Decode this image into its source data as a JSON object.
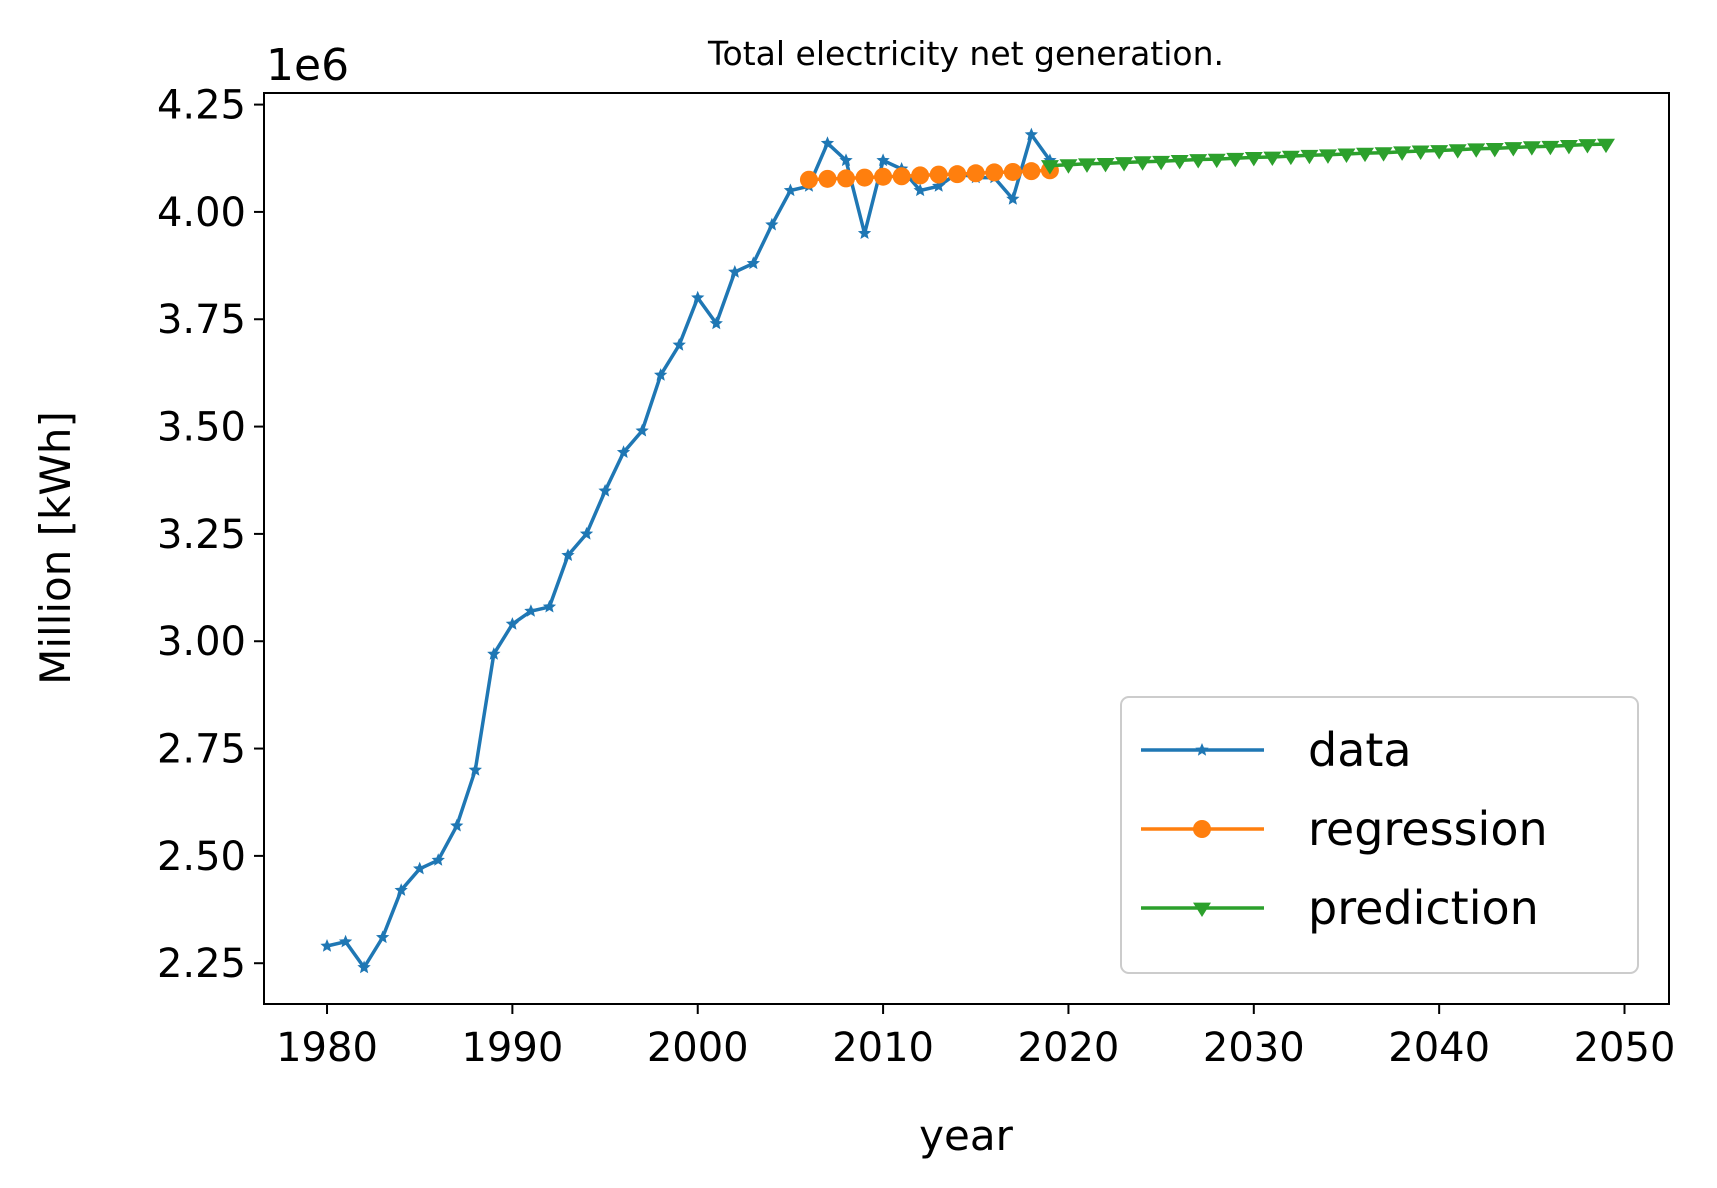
{
  "chart_data": {
    "type": "line",
    "title": "Total electricity net generation.",
    "xlabel": "year",
    "ylabel": "Million [kWh]",
    "y_offset_text": "1e6",
    "xlim": [
      1976.6,
      2052.4
    ],
    "ylim": [
      2.155,
      4.277
    ],
    "x_ticks": [
      1980,
      1990,
      2000,
      2010,
      2020,
      2030,
      2040,
      2050
    ],
    "x_tick_labels": [
      "1980",
      "1990",
      "2000",
      "2010",
      "2020",
      "2030",
      "2040",
      "2050"
    ],
    "y_ticks": [
      2.25,
      2.5,
      2.75,
      3.0,
      3.25,
      3.5,
      3.75,
      4.0,
      4.25
    ],
    "y_tick_labels": [
      "2.25",
      "2.50",
      "2.75",
      "3.00",
      "3.25",
      "3.50",
      "3.75",
      "4.00",
      "4.25"
    ],
    "grid": false,
    "legend_position": "lower-right",
    "series": [
      {
        "name": "data",
        "color": "#1f77b4",
        "marker": "star",
        "x": [
          1980,
          1981,
          1982,
          1983,
          1984,
          1985,
          1986,
          1987,
          1988,
          1989,
          1990,
          1991,
          1992,
          1993,
          1994,
          1995,
          1996,
          1997,
          1998,
          1999,
          2000,
          2001,
          2002,
          2003,
          2004,
          2005,
          2006,
          2007,
          2008,
          2009,
          2010,
          2011,
          2012,
          2013,
          2014,
          2015,
          2016,
          2017,
          2018,
          2019
        ],
        "y": [
          2.29,
          2.3,
          2.24,
          2.31,
          2.42,
          2.47,
          2.49,
          2.57,
          2.7,
          2.97,
          3.04,
          3.07,
          3.08,
          3.2,
          3.25,
          3.35,
          3.44,
          3.49,
          3.62,
          3.69,
          3.8,
          3.74,
          3.86,
          3.88,
          3.97,
          4.05,
          4.06,
          4.16,
          4.12,
          3.95,
          4.12,
          4.1,
          4.05,
          4.06,
          4.09,
          4.08,
          4.08,
          4.03,
          4.18,
          4.12
        ]
      },
      {
        "name": "regression",
        "color": "#ff7f0e",
        "marker": "circle",
        "x": [
          2006,
          2007,
          2008,
          2009,
          2010,
          2011,
          2012,
          2013,
          2014,
          2015,
          2016,
          2017,
          2018,
          2019
        ],
        "y": [
          4.075,
          4.077,
          4.078,
          4.08,
          4.082,
          4.083,
          4.085,
          4.087,
          4.088,
          4.09,
          4.092,
          4.093,
          4.095,
          4.097
        ]
      },
      {
        "name": "prediction",
        "color": "#2ca02c",
        "marker": "triangle-down",
        "x": [
          2019,
          2020,
          2021,
          2022,
          2023,
          2024,
          2025,
          2026,
          2027,
          2028,
          2029,
          2030,
          2031,
          2032,
          2033,
          2034,
          2035,
          2036,
          2037,
          2038,
          2039,
          2040,
          2041,
          2042,
          2043,
          2044,
          2045,
          2046,
          2047,
          2048,
          2049
        ],
        "y": [
          4.108,
          4.11,
          4.112,
          4.113,
          4.115,
          4.117,
          4.118,
          4.12,
          4.122,
          4.123,
          4.125,
          4.127,
          4.128,
          4.13,
          4.132,
          4.133,
          4.135,
          4.137,
          4.138,
          4.14,
          4.142,
          4.143,
          4.145,
          4.147,
          4.148,
          4.15,
          4.152,
          4.153,
          4.155,
          4.157,
          4.158
        ]
      }
    ]
  }
}
